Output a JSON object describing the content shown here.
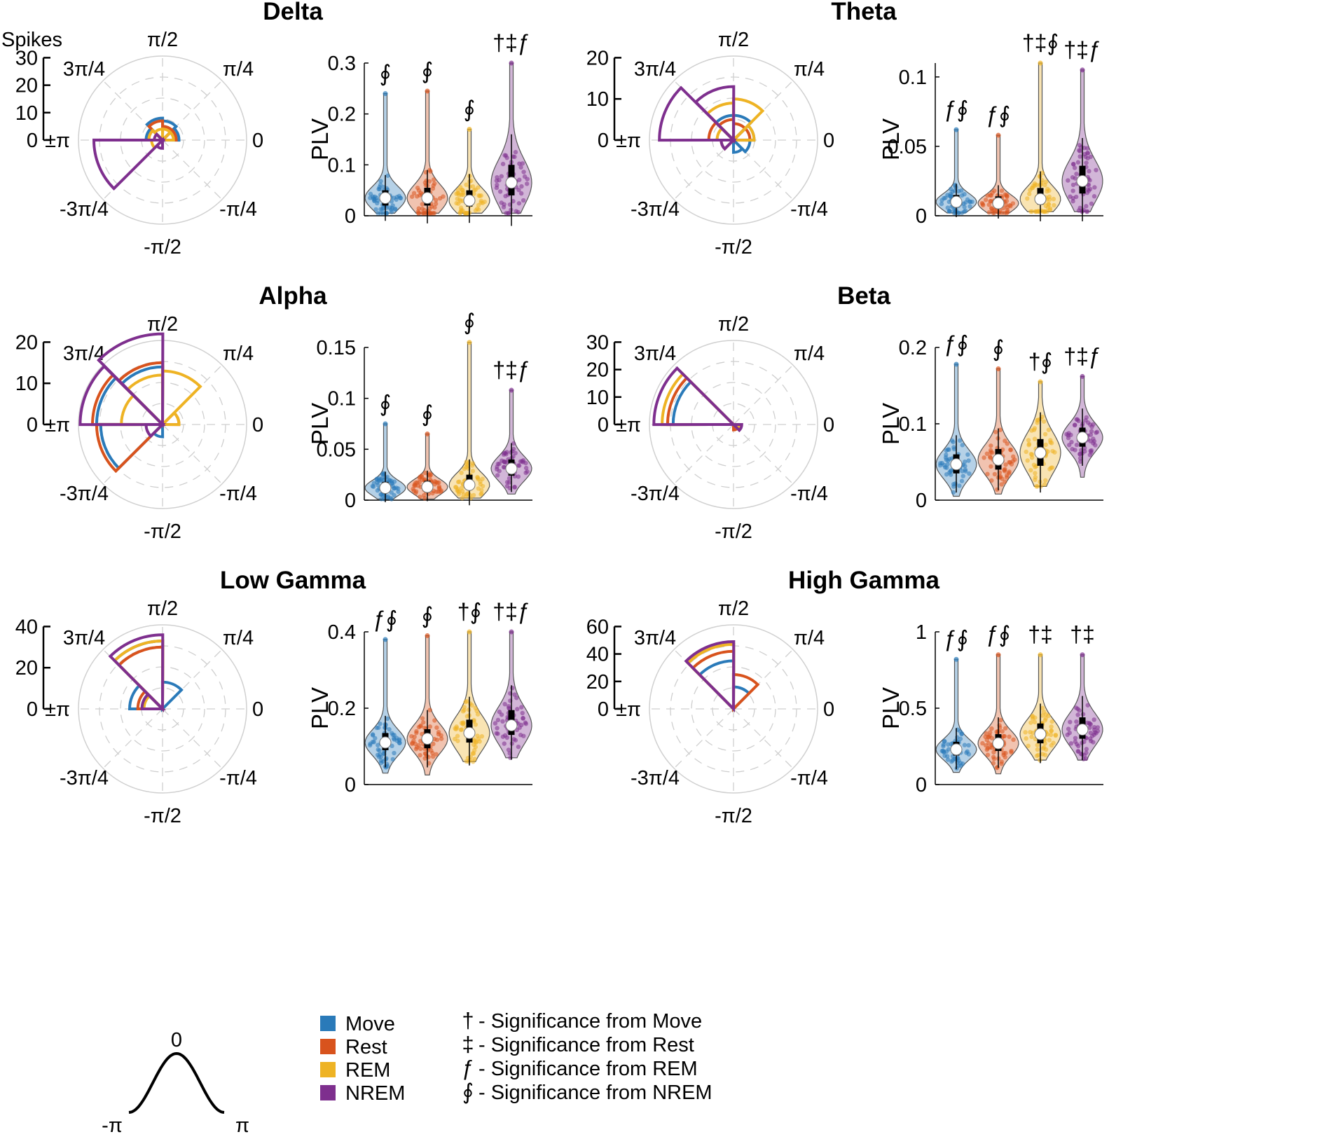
{
  "colors": {
    "Move": "#2a7ab9",
    "Rest": "#d8531d",
    "REM": "#eeb324",
    "NREM": "#7e2f8e"
  },
  "common": {
    "ylabel": "PLV",
    "spikes_label": "Spikes",
    "angle_labels": {
      "top": "π/2",
      "top_right": "π/4",
      "right": "0",
      "bottom_right": "-π/4",
      "bottom": "-π/2",
      "bottom_left": "-3π/4",
      "left": "±π",
      "top_left": "3π/4"
    }
  },
  "panels": [
    {
      "band": "Delta",
      "rmax": 30,
      "rticks": [
        {
          "v": 0,
          "label": "0"
        },
        {
          "v": 10,
          "label": "10"
        },
        {
          "v": 20,
          "label": "20"
        },
        {
          "v": 30,
          "label": "30"
        }
      ]
    },
    {
      "band": "Theta",
      "rmax": 20,
      "rticks": [
        {
          "v": 0,
          "label": "0"
        },
        {
          "v": 10,
          "label": "10"
        },
        {
          "v": 20,
          "label": "20"
        }
      ]
    },
    {
      "band": "Alpha",
      "rmax": 20,
      "rticks": [
        {
          "v": 0,
          "label": "0"
        },
        {
          "v": 10,
          "label": "10"
        },
        {
          "v": 20,
          "label": "20"
        }
      ]
    },
    {
      "band": "Beta",
      "rmax": 30,
      "rticks": [
        {
          "v": 0,
          "label": "0"
        },
        {
          "v": 10,
          "label": "10"
        },
        {
          "v": 20,
          "label": "20"
        },
        {
          "v": 30,
          "label": "30"
        }
      ]
    },
    {
      "band": "Low Gamma",
      "rmax": 40,
      "rticks": [
        {
          "v": 0,
          "label": "0"
        },
        {
          "v": 20,
          "label": "20"
        },
        {
          "v": 40,
          "label": "40"
        }
      ]
    },
    {
      "band": "High Gamma",
      "rmax": 60,
      "rticks": [
        {
          "v": 0,
          "label": "0"
        },
        {
          "v": 20,
          "label": "20"
        },
        {
          "v": 40,
          "label": "40"
        },
        {
          "v": 60,
          "label": "60"
        }
      ]
    }
  ],
  "chart_data": [
    {
      "type": "polar-histogram",
      "title": "Delta",
      "rlabel": "Spikes",
      "rlim": [
        0,
        30
      ],
      "bin_width_rad": 0.785,
      "series": [
        {
          "name": "Move",
          "bins": [
            {
              "angle": 0.39,
              "count": 6
            },
            {
              "angle": 1.18,
              "count": 7
            },
            {
              "angle": 1.96,
              "count": 8
            },
            {
              "angle": 2.75,
              "count": 6
            }
          ]
        },
        {
          "name": "Rest",
          "bins": [
            {
              "angle": 0.39,
              "count": 5
            },
            {
              "angle": 1.18,
              "count": 5
            },
            {
              "angle": 1.96,
              "count": 7
            },
            {
              "angle": 2.75,
              "count": 5
            }
          ]
        },
        {
          "name": "REM",
          "bins": [
            {
              "angle": 0.39,
              "count": 4
            },
            {
              "angle": 1.18,
              "count": 4
            },
            {
              "angle": 1.96,
              "count": 4
            },
            {
              "angle": 2.75,
              "count": 5
            },
            {
              "angle": -2.75,
              "count": 4
            }
          ]
        },
        {
          "name": "NREM",
          "bins": [
            {
              "angle": 2.75,
              "count": 3
            },
            {
              "angle": -2.75,
              "count": 25
            },
            {
              "angle": -1.96,
              "count": 3
            }
          ]
        }
      ]
    },
    {
      "type": "violin",
      "title": "Delta",
      "ylabel": "PLV",
      "ylim": [
        0,
        0.3
      ],
      "yticks": [
        "0",
        "0.1",
        "0.2",
        "0.3"
      ],
      "categories": [
        "Move",
        "Rest",
        "REM",
        "NREM"
      ],
      "series": [
        {
          "name": "Move",
          "min": 0.005,
          "max": 0.24,
          "q1": 0.02,
          "median": 0.035,
          "q3": 0.05,
          "sig": "∮"
        },
        {
          "name": "Rest",
          "min": 0.005,
          "max": 0.245,
          "q1": 0.02,
          "median": 0.035,
          "q3": 0.055,
          "sig": "∮"
        },
        {
          "name": "REM",
          "min": 0.005,
          "max": 0.17,
          "q1": 0.018,
          "median": 0.03,
          "q3": 0.05,
          "sig": "∮"
        },
        {
          "name": "NREM",
          "min": 0.005,
          "max": 0.3,
          "q1": 0.04,
          "median": 0.065,
          "q3": 0.1,
          "sig": "†‡ƒ"
        }
      ]
    },
    {
      "type": "polar-histogram",
      "title": "Theta",
      "rlabel": "Spikes",
      "rlim": [
        0,
        20
      ],
      "bin_width_rad": 0.785,
      "series": [
        {
          "name": "Move",
          "bins": [
            {
              "angle": 0.39,
              "count": 5
            },
            {
              "angle": 1.18,
              "count": 6
            },
            {
              "angle": 1.96,
              "count": 6
            },
            {
              "angle": -0.39,
              "count": 4
            },
            {
              "angle": -1.18,
              "count": 3
            }
          ]
        },
        {
          "name": "Rest",
          "bins": [
            {
              "angle": 0.39,
              "count": 4
            },
            {
              "angle": 1.18,
              "count": 4
            },
            {
              "angle": 1.96,
              "count": 5
            },
            {
              "angle": 2.75,
              "count": 6
            },
            {
              "angle": -2.75,
              "count": 3
            }
          ]
        },
        {
          "name": "REM",
          "bins": [
            {
              "angle": 0.39,
              "count": 5
            },
            {
              "angle": 1.18,
              "count": 10
            },
            {
              "angle": 1.96,
              "count": 9
            },
            {
              "angle": 2.75,
              "count": 4
            }
          ]
        },
        {
          "name": "NREM",
          "bins": [
            {
              "angle": 1.96,
              "count": 13
            },
            {
              "angle": 2.75,
              "count": 18
            },
            {
              "angle": -2.75,
              "count": 3
            }
          ]
        }
      ]
    },
    {
      "type": "violin",
      "title": "Theta",
      "ylabel": "PLV",
      "ylim": [
        0,
        0.11
      ],
      "yticks": [
        "0",
        "0.05",
        "0.1"
      ],
      "categories": [
        "Move",
        "Rest",
        "REM",
        "NREM"
      ],
      "series": [
        {
          "name": "Move",
          "min": 0.002,
          "max": 0.062,
          "q1": 0.007,
          "median": 0.01,
          "q3": 0.015,
          "sig": "ƒ∮"
        },
        {
          "name": "Rest",
          "min": 0.002,
          "max": 0.058,
          "q1": 0.006,
          "median": 0.009,
          "q3": 0.014,
          "sig": "ƒ∮"
        },
        {
          "name": "REM",
          "min": 0.003,
          "max": 0.11,
          "q1": 0.008,
          "median": 0.012,
          "q3": 0.02,
          "sig": "†‡∮"
        },
        {
          "name": "NREM",
          "min": 0.003,
          "max": 0.105,
          "q1": 0.016,
          "median": 0.025,
          "q3": 0.036,
          "sig": "†‡ƒ"
        }
      ]
    },
    {
      "type": "polar-histogram",
      "title": "Alpha",
      "rlabel": "Spikes",
      "rlim": [
        0,
        20
      ],
      "bin_width_rad": 0.785,
      "series": [
        {
          "name": "Move",
          "bins": [
            {
              "angle": 1.96,
              "count": 14
            },
            {
              "angle": 2.75,
              "count": 16
            },
            {
              "angle": -2.75,
              "count": 15
            },
            {
              "angle": -1.96,
              "count": 3
            }
          ]
        },
        {
          "name": "Rest",
          "bins": [
            {
              "angle": 1.96,
              "count": 15
            },
            {
              "angle": 2.75,
              "count": 17
            },
            {
              "angle": -2.75,
              "count": 16
            },
            {
              "angle": 0.39,
              "count": 4
            }
          ]
        },
        {
          "name": "REM",
          "bins": [
            {
              "angle": 1.18,
              "count": 13
            },
            {
              "angle": 1.96,
              "count": 12
            },
            {
              "angle": 2.75,
              "count": 10
            },
            {
              "angle": 0.39,
              "count": 4
            }
          ]
        },
        {
          "name": "NREM",
          "bins": [
            {
              "angle": 1.96,
              "count": 22
            },
            {
              "angle": 2.75,
              "count": 20
            },
            {
              "angle": -2.75,
              "count": 4
            }
          ]
        }
      ]
    },
    {
      "type": "violin",
      "title": "Alpha",
      "ylabel": "PLV",
      "ylim": [
        0,
        0.15
      ],
      "yticks": [
        "0",
        "0.05",
        "0.1",
        "0.15"
      ],
      "categories": [
        "Move",
        "Rest",
        "REM",
        "NREM"
      ],
      "series": [
        {
          "name": "Move",
          "min": 0.001,
          "max": 0.075,
          "q1": 0.008,
          "median": 0.012,
          "q3": 0.018,
          "sig": "∮"
        },
        {
          "name": "Rest",
          "min": 0.001,
          "max": 0.065,
          "q1": 0.009,
          "median": 0.013,
          "q3": 0.019,
          "sig": "∮"
        },
        {
          "name": "REM",
          "min": 0.002,
          "max": 0.155,
          "q1": 0.01,
          "median": 0.015,
          "q3": 0.025,
          "sig": "∮"
        },
        {
          "name": "NREM",
          "min": 0.006,
          "max": 0.108,
          "q1": 0.024,
          "median": 0.031,
          "q3": 0.04,
          "sig": "†‡ƒ"
        }
      ]
    },
    {
      "type": "polar-histogram",
      "title": "Beta",
      "rlabel": "Spikes",
      "rlim": [
        0,
        30
      ],
      "bin_width_rad": 0.785,
      "series": [
        {
          "name": "Move",
          "bins": [
            {
              "angle": 2.75,
              "count": 22
            },
            {
              "angle": -0.39,
              "count": 2
            }
          ]
        },
        {
          "name": "Rest",
          "bins": [
            {
              "angle": 2.75,
              "count": 24
            },
            {
              "angle": -1.18,
              "count": 2
            }
          ]
        },
        {
          "name": "REM",
          "bins": [
            {
              "angle": 2.75,
              "count": 26
            },
            {
              "angle": -0.39,
              "count": 2
            }
          ]
        },
        {
          "name": "NREM",
          "bins": [
            {
              "angle": 2.75,
              "count": 29
            },
            {
              "angle": -0.39,
              "count": 3
            }
          ]
        }
      ]
    },
    {
      "type": "violin",
      "title": "Beta",
      "ylabel": "PLV",
      "ylim": [
        0,
        0.2
      ],
      "yticks": [
        "0",
        "0.1",
        "0.2"
      ],
      "categories": [
        "Move",
        "Rest",
        "REM",
        "NREM"
      ],
      "series": [
        {
          "name": "Move",
          "min": 0.005,
          "max": 0.178,
          "q1": 0.035,
          "median": 0.047,
          "q3": 0.06,
          "sig": "ƒ∮"
        },
        {
          "name": "Rest",
          "min": 0.008,
          "max": 0.172,
          "q1": 0.04,
          "median": 0.053,
          "q3": 0.067,
          "sig": "∮"
        },
        {
          "name": "REM",
          "min": 0.018,
          "max": 0.155,
          "q1": 0.045,
          "median": 0.062,
          "q3": 0.08,
          "sig": "†∮"
        },
        {
          "name": "NREM",
          "min": 0.03,
          "max": 0.162,
          "q1": 0.07,
          "median": 0.082,
          "q3": 0.095,
          "sig": "†‡ƒ"
        }
      ]
    },
    {
      "type": "polar-histogram",
      "title": "Low Gamma",
      "rlabel": "Spikes",
      "rlim": [
        0,
        40
      ],
      "bin_width_rad": 0.785,
      "series": [
        {
          "name": "Move",
          "bins": [
            {
              "angle": 1.96,
              "count": 33
            },
            {
              "angle": 2.75,
              "count": 16
            },
            {
              "angle": 1.18,
              "count": 13
            }
          ]
        },
        {
          "name": "Rest",
          "bins": [
            {
              "angle": 1.96,
              "count": 30
            },
            {
              "angle": 2.75,
              "count": 12
            }
          ]
        },
        {
          "name": "REM",
          "bins": [
            {
              "angle": 1.96,
              "count": 33
            },
            {
              "angle": 2.75,
              "count": 9
            }
          ]
        },
        {
          "name": "NREM",
          "bins": [
            {
              "angle": 1.96,
              "count": 36
            },
            {
              "angle": 2.75,
              "count": 10
            }
          ]
        }
      ]
    },
    {
      "type": "violin",
      "title": "Low Gamma",
      "ylabel": "PLV",
      "ylim": [
        0,
        0.4
      ],
      "yticks": [
        "0",
        "0.2",
        "0.4"
      ],
      "categories": [
        "Move",
        "Rest",
        "REM",
        "NREM"
      ],
      "series": [
        {
          "name": "Move",
          "min": 0.03,
          "max": 0.38,
          "q1": 0.09,
          "median": 0.11,
          "q3": 0.135,
          "sig": "ƒ∮"
        },
        {
          "name": "Rest",
          "min": 0.025,
          "max": 0.39,
          "q1": 0.095,
          "median": 0.12,
          "q3": 0.145,
          "sig": "∮"
        },
        {
          "name": "REM",
          "min": 0.06,
          "max": 0.4,
          "q1": 0.11,
          "median": 0.135,
          "q3": 0.17,
          "sig": "†∮"
        },
        {
          "name": "NREM",
          "min": 0.07,
          "max": 0.4,
          "q1": 0.13,
          "median": 0.155,
          "q3": 0.195,
          "sig": "†‡ƒ"
        }
      ]
    },
    {
      "type": "polar-histogram",
      "title": "High Gamma",
      "rlabel": "Spikes",
      "rlim": [
        0,
        60
      ],
      "bin_width_rad": 0.785,
      "series": [
        {
          "name": "Move",
          "bins": [
            {
              "angle": 1.96,
              "count": 35
            },
            {
              "angle": 1.18,
              "count": 16
            }
          ]
        },
        {
          "name": "Rest",
          "bins": [
            {
              "angle": 1.96,
              "count": 42
            },
            {
              "angle": 1.18,
              "count": 25
            }
          ]
        },
        {
          "name": "REM",
          "bins": [
            {
              "angle": 1.96,
              "count": 47
            }
          ]
        },
        {
          "name": "NREM",
          "bins": [
            {
              "angle": 1.96,
              "count": 49
            }
          ]
        }
      ]
    },
    {
      "type": "violin",
      "title": "High Gamma",
      "ylabel": "PLV",
      "ylim": [
        0,
        1
      ],
      "yticks": [
        "0",
        "0.5",
        "1"
      ],
      "categories": [
        "Move",
        "Rest",
        "REM",
        "NREM"
      ],
      "series": [
        {
          "name": "Move",
          "min": 0.08,
          "max": 0.82,
          "q1": 0.19,
          "median": 0.23,
          "q3": 0.28,
          "sig": "ƒ∮"
        },
        {
          "name": "Rest",
          "min": 0.07,
          "max": 0.85,
          "q1": 0.22,
          "median": 0.27,
          "q3": 0.33,
          "sig": "ƒ∮"
        },
        {
          "name": "REM",
          "min": 0.16,
          "max": 0.85,
          "q1": 0.27,
          "median": 0.33,
          "q3": 0.4,
          "sig": "†‡"
        },
        {
          "name": "NREM",
          "min": 0.16,
          "max": 0.85,
          "q1": 0.3,
          "median": 0.36,
          "q3": 0.44,
          "sig": "†‡"
        }
      ]
    }
  ],
  "legend": {
    "items": [
      {
        "name": "Move",
        "color": "#2a7ab9"
      },
      {
        "name": "Rest",
        "color": "#d8531d"
      },
      {
        "name": "REM",
        "color": "#eeb324"
      },
      {
        "name": "NREM",
        "color": "#7e2f8e"
      }
    ],
    "significance": [
      {
        "symbol": "†",
        "text": " - Significance from Move"
      },
      {
        "symbol": "‡",
        "text": " - Significance from Rest"
      },
      {
        "symbol": "ƒ",
        "text": " - Significance from REM"
      },
      {
        "symbol": "∮",
        "text": " - Significance from NREM"
      }
    ]
  },
  "inset": {
    "peak_label": "0",
    "left_label": "-π",
    "right_label": "π"
  }
}
